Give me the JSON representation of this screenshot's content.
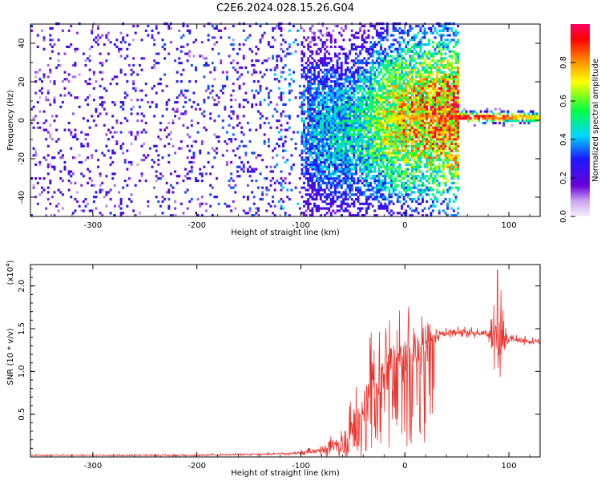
{
  "title": "C2E6.2024.028.15.26.G04",
  "chart_data": [
    {
      "type": "heatmap",
      "xlabel": "Height of straight line (km)",
      "ylabel": "Frequency (Hz)",
      "xlim": [
        -360,
        130
      ],
      "ylim": [
        -50,
        50
      ],
      "xticks": [
        -300,
        -200,
        -100,
        0,
        100
      ],
      "yticks": [
        -40,
        -20,
        0,
        20,
        40
      ],
      "colorbar": {
        "label": "Normalized spectral amplitude",
        "range": [
          0,
          1
        ],
        "ticks": [
          "0.0",
          "0.2",
          "0.4",
          "0.6",
          "0.8"
        ],
        "colormap": "rainbow: white/lavender at 0 through purple, blue, cyan, green, yellow, orange to red/magenta at 1"
      },
      "description_ridge": [
        {
          "x": -360,
          "y_center": 0,
          "spread": 50,
          "amp": 0.25
        },
        {
          "x": -170,
          "y_center": 0,
          "spread": 50,
          "amp": 0.3
        },
        {
          "x": -120,
          "y_center": -2,
          "spread": 30,
          "amp": 0.35
        },
        {
          "x": -80,
          "y_center": -6,
          "spread": 10,
          "amp": 0.45
        },
        {
          "x": -50,
          "y_center": -5,
          "spread": 8,
          "amp": 0.5
        },
        {
          "x": -20,
          "y_center": 0,
          "spread": 4,
          "amp": 0.7
        },
        {
          "x": 0,
          "y_center": 1,
          "spread": 3,
          "amp": 0.8
        },
        {
          "x": 50,
          "y_center": 1,
          "spread": 3,
          "amp": 0.95
        },
        {
          "x": 85,
          "y_center": 1,
          "spread": 3,
          "amp": 0.9
        },
        {
          "x": 130,
          "y_center": 1,
          "spread": 3,
          "amp": 0.7
        }
      ]
    },
    {
      "type": "line",
      "xlabel": "Height of straight line (km)",
      "ylabel": "SNR (10 * v/v)",
      "yscale_label": "(x10",
      "yscale_exponent": "4",
      "xlim": [
        -360,
        130
      ],
      "ylim": [
        0,
        2.25
      ],
      "xticks": [
        -300,
        -200,
        -100,
        0,
        100
      ],
      "yticks": [
        "0.5",
        "1.0",
        "1.5",
        "2.0"
      ],
      "color": "#e8332d",
      "series": [
        {
          "x": [
            -360,
            -300,
            -200,
            -150,
            -110,
            -90,
            -70,
            -60,
            -50,
            -45,
            -40,
            -35,
            -30,
            -25,
            -20,
            -15,
            -10,
            -5,
            0,
            5,
            10,
            15,
            20,
            25,
            30,
            35,
            40,
            50,
            60,
            70,
            80,
            85,
            88,
            90,
            92,
            95,
            100,
            110,
            120,
            130
          ],
          "values": [
            0.02,
            0.02,
            0.02,
            0.03,
            0.04,
            0.06,
            0.1,
            0.15,
            0.25,
            0.45,
            0.55,
            0.6,
            0.75,
            0.85,
            0.9,
            1.0,
            1.05,
            1.1,
            1.12,
            1.2,
            1.25,
            1.3,
            1.35,
            1.4,
            1.42,
            1.44,
            1.45,
            1.46,
            1.46,
            1.45,
            1.44,
            1.42,
            1.45,
            1.3,
            1.2,
            1.4,
            1.38,
            1.37,
            1.35,
            1.34
          ],
          "noise_envelope": {
            "x": [
              -360,
              -120,
              -100,
              -80,
              -60,
              -45,
              -30,
              -15,
              0,
              20,
              35,
              80,
              85,
              90,
              95,
              100,
              130
            ],
            "amp": [
              0.005,
              0.01,
              0.02,
              0.05,
              0.15,
              0.45,
              0.5,
              0.45,
              0.4,
              0.2,
              0.05,
              0.04,
              0.25,
              0.5,
              0.3,
              0.05,
              0.03
            ]
          }
        }
      ]
    }
  ]
}
